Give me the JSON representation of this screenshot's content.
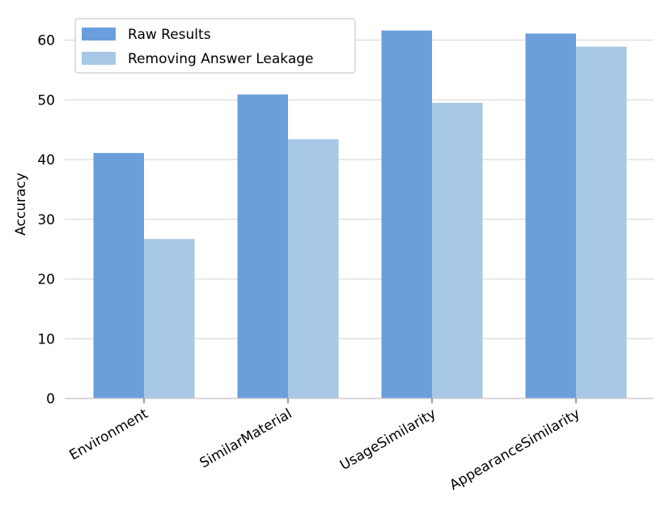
{
  "chart_data": {
    "type": "bar",
    "title": "",
    "xlabel": "",
    "ylabel": "Accuracy",
    "categories": [
      "Environment",
      "SimilarMaterial",
      "UsageSimilarity",
      "AppearanceSimilarity"
    ],
    "series": [
      {
        "name": "Raw Results",
        "values": [
          41.1,
          50.9,
          61.6,
          61.1
        ],
        "color": "#6a9fdc"
      },
      {
        "name": "Removing Answer Leakage",
        "values": [
          26.7,
          43.4,
          49.5,
          58.9
        ],
        "color": "#a6c8e6"
      }
    ],
    "ylim": [
      0,
      65
    ],
    "yticks": [
      0,
      10,
      20,
      30,
      40,
      50,
      60
    ],
    "grid": "horizontal",
    "legend_position": "top-left"
  }
}
